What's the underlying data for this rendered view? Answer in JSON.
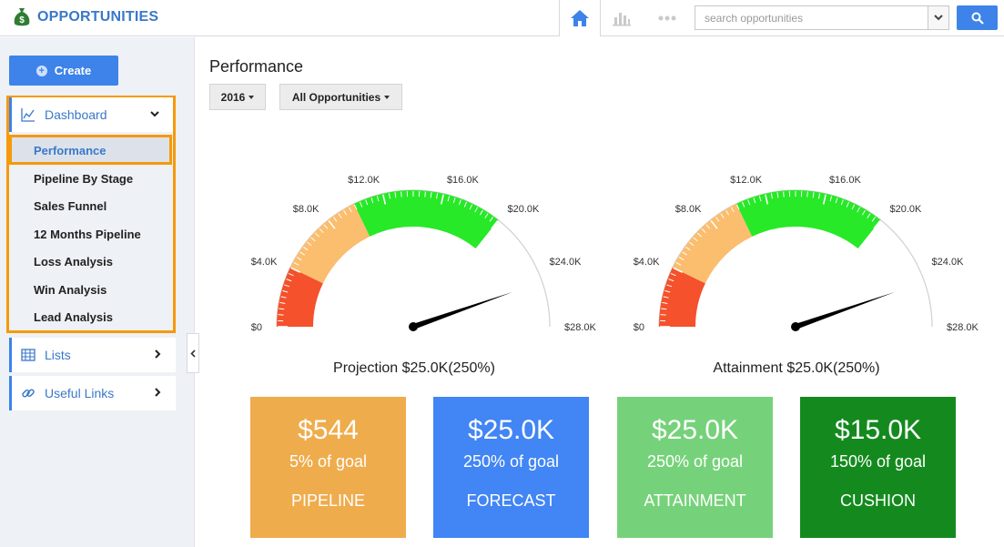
{
  "app": {
    "title": "OPPORTUNITIES"
  },
  "topnav": {
    "home_icon": "home-icon",
    "chart_icon": "bar-chart-icon",
    "more_icon": "more-dots-icon",
    "search_placeholder": "search opportunities"
  },
  "sidebar": {
    "create_label": "Create",
    "dashboard": {
      "label": "Dashboard",
      "items": [
        "Performance",
        "Pipeline By Stage",
        "Sales Funnel",
        "12 Months Pipeline",
        "Loss Analysis",
        "Win Analysis",
        "Lead Analysis"
      ],
      "active": "Performance"
    },
    "lists_label": "Lists",
    "links_label": "Useful Links"
  },
  "main": {
    "title": "Performance",
    "year_filter": "2016",
    "scope_filter": "All Opportunities",
    "gauges": [
      {
        "caption": "Projection $25.0K(250%)",
        "value": 25000
      },
      {
        "caption": "Attainment $25.0K(250%)",
        "value": 25000
      }
    ],
    "gauge_ticks": [
      "$0",
      "$4.0K",
      "$8.0K",
      "$12.0K",
      "$16.0K",
      "$20.0K",
      "$24.0K",
      "$28.0K"
    ],
    "gauge_max": 28000,
    "gauge_bands": [
      {
        "from": 0,
        "to": 4000,
        "color": "#f4512c"
      },
      {
        "from": 4000,
        "to": 10000,
        "color": "#fbbd6e"
      },
      {
        "from": 10000,
        "to": 20000,
        "color": "#27e927"
      }
    ],
    "cards": [
      {
        "value": "$544",
        "goal": "5% of goal",
        "label": "PIPELINE"
      },
      {
        "value": "$25.0K",
        "goal": "250% of goal",
        "label": "FORECAST"
      },
      {
        "value": "$25.0K",
        "goal": "250% of goal",
        "label": "ATTAINMENT"
      },
      {
        "value": "$15.0K",
        "goal": "150% of goal",
        "label": "CUSHION"
      }
    ]
  },
  "colors": {
    "accent": "#3d83e9",
    "highlight": "#f59a0c"
  }
}
